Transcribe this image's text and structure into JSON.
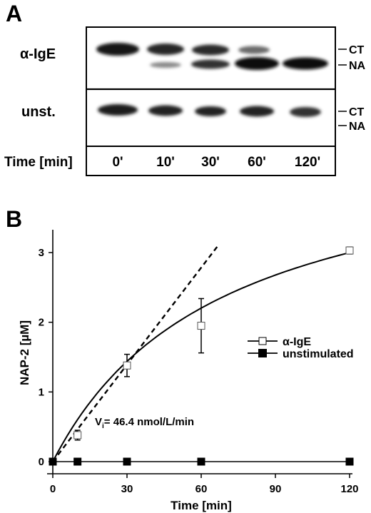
{
  "panel_a": {
    "letter": "A",
    "rows": [
      {
        "label": "α-IgE"
      },
      {
        "label": "unst."
      }
    ],
    "band_labels": {
      "upper": "CT",
      "lower": "NA"
    },
    "time_header": "Time [min]",
    "time_points": [
      "0'",
      "10'",
      "30'",
      "60'",
      "120'"
    ]
  },
  "panel_b": {
    "letter": "B"
  },
  "chart_data": {
    "type": "line",
    "xlabel": "Time [min]",
    "ylabel": "NAP-2 [µM]",
    "xlim": [
      0,
      120
    ],
    "ylim": [
      0,
      3.2
    ],
    "xticks": [
      0,
      30,
      60,
      90,
      120
    ],
    "yticks": [
      0,
      1,
      2,
      3
    ],
    "grid": false,
    "legend_position": "right",
    "series": [
      {
        "name": "α-IgE",
        "marker": "open-square",
        "x": [
          0,
          10,
          30,
          60,
          120
        ],
        "y": [
          0,
          0.38,
          1.38,
          1.95,
          3.03
        ],
        "yerr": [
          0,
          0.07,
          0.16,
          0.39,
          0.05
        ],
        "fit": "solid-curve"
      },
      {
        "name": "unstimulated",
        "marker": "filled-square",
        "x": [
          0,
          10,
          30,
          60,
          120
        ],
        "y": [
          0,
          0,
          0,
          0,
          0
        ]
      }
    ],
    "initial_rate_line": {
      "style": "dashed",
      "slope_uM_per_min": 0.0464
    },
    "annotation": {
      "prefix": "V",
      "subscript": "i",
      "text": "= 46.4 nmol/L/min"
    }
  }
}
